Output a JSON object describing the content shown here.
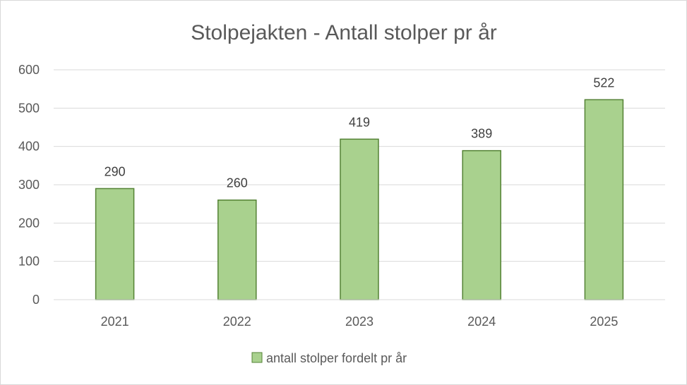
{
  "chart_data": {
    "type": "bar",
    "title": "Stolpejakten - Antall stolper pr år",
    "categories": [
      "2021",
      "2022",
      "2023",
      "2024",
      "2025"
    ],
    "series": [
      {
        "name": "antall stolper fordelt pr år",
        "values": [
          290,
          260,
          419,
          389,
          522
        ],
        "color": "#a9d18e",
        "border_color": "#548235"
      }
    ],
    "ylim": [
      0,
      600
    ],
    "yticks": [
      0,
      100,
      200,
      300,
      400,
      500,
      600
    ],
    "grid": true,
    "legend_position": "bottom",
    "data_labels": true,
    "gridline_color": "#d9d9d9"
  }
}
